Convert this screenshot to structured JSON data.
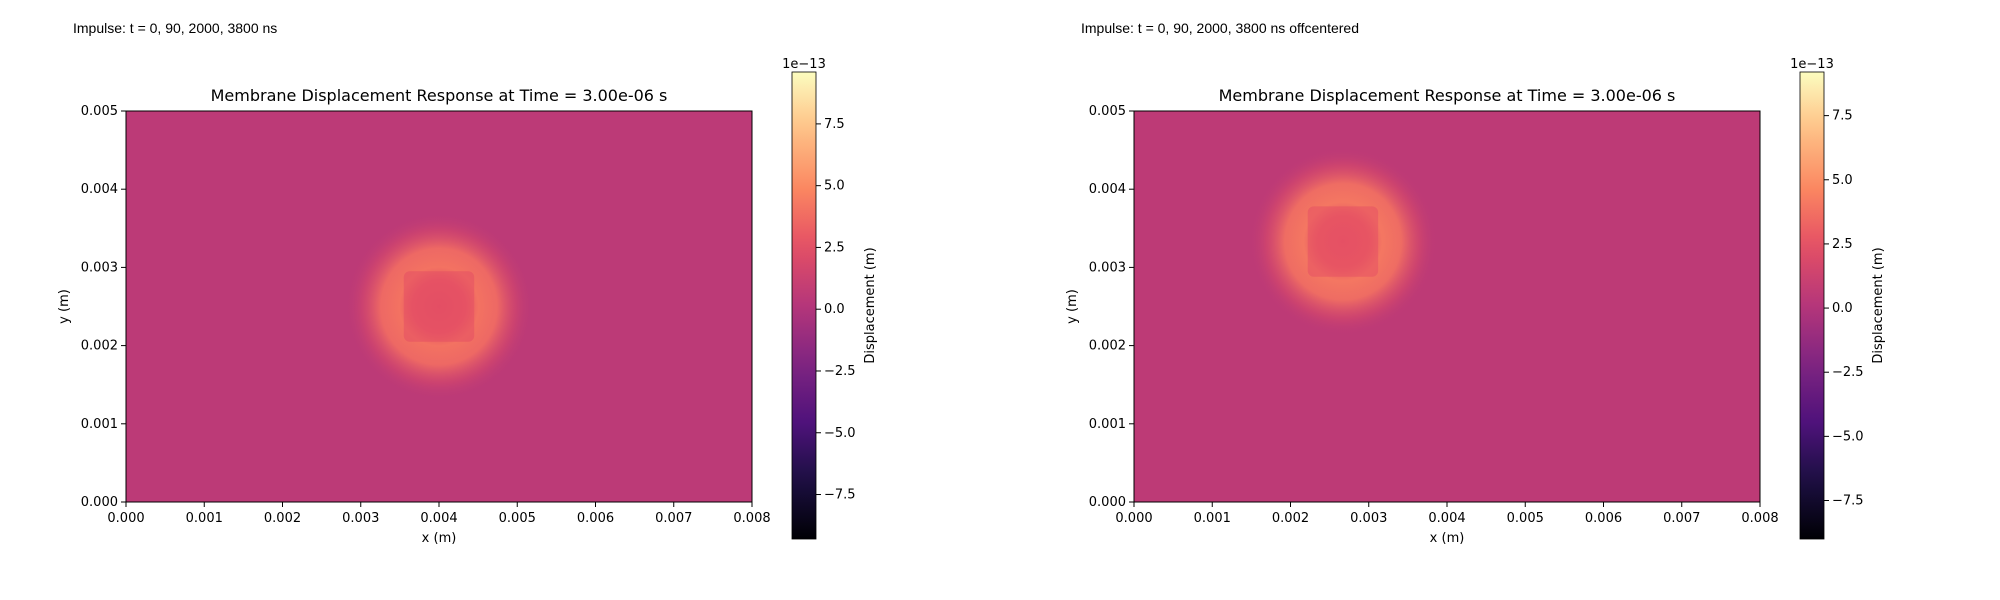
{
  "panels": [
    {
      "caption": "Impulse: t = 0, 90, 2000, 3800 ns",
      "chart_data": {
        "type": "heatmap",
        "title": "Membrane Displacement Response at Time = 3.00e-06 s",
        "xlabel": "x (m)",
        "ylabel": "y (m)",
        "xlim": [
          0.0,
          0.008
        ],
        "ylim": [
          0.0,
          0.005
        ],
        "xticks": [
          "0.000",
          "0.001",
          "0.002",
          "0.003",
          "0.004",
          "0.005",
          "0.006",
          "0.007",
          "0.008"
        ],
        "yticks": [
          "0.000",
          "0.001",
          "0.002",
          "0.003",
          "0.004",
          "0.005"
        ],
        "colormap": "magma",
        "background_value_e13": 0.5,
        "ring": {
          "center_x": 0.004,
          "center_y": 0.0025,
          "peak_value_e13": 4.0,
          "center_value_e13": 2.5,
          "inner_radius": 0.00045,
          "outer_radius": 0.0012
        },
        "colorbar": {
          "label": "Displacement (m)",
          "offset_label": "1e−13",
          "range_e13": [
            -9.3,
            9.6
          ],
          "ticks": [
            "−7.5",
            "−5.0",
            "−2.5",
            "0.0",
            "2.5",
            "5.0",
            "7.5"
          ],
          "tick_values_e13": [
            -7.5,
            -5.0,
            -2.5,
            0.0,
            2.5,
            5.0,
            7.5
          ]
        }
      }
    },
    {
      "caption": "Impulse: t = 0, 90, 2000, 3800 ns offcentered",
      "chart_data": {
        "type": "heatmap",
        "title": "Membrane Displacement Response at Time = 3.00e-06 s",
        "xlabel": "x (m)",
        "ylabel": "y (m)",
        "xlim": [
          0.0,
          0.008
        ],
        "ylim": [
          0.0,
          0.005
        ],
        "xticks": [
          "0.000",
          "0.001",
          "0.002",
          "0.003",
          "0.004",
          "0.005",
          "0.006",
          "0.007",
          "0.008"
        ],
        "yticks": [
          "0.000",
          "0.001",
          "0.002",
          "0.003",
          "0.004",
          "0.005"
        ],
        "colormap": "magma",
        "background_value_e13": 0.5,
        "ring": {
          "center_x": 0.00267,
          "center_y": 0.00333,
          "peak_value_e13": 4.0,
          "center_value_e13": 2.5,
          "inner_radius": 0.00045,
          "outer_radius": 0.0012
        },
        "colorbar": {
          "label": "Displacement (m)",
          "offset_label": "1e−13",
          "range_e13": [
            -9.0,
            9.2
          ],
          "ticks": [
            "−7.5",
            "−5.0",
            "−2.5",
            "0.0",
            "2.5",
            "5.0",
            "7.5"
          ],
          "tick_values_e13": [
            -7.5,
            -5.0,
            -2.5,
            0.0,
            2.5,
            5.0,
            7.5
          ]
        }
      }
    }
  ]
}
